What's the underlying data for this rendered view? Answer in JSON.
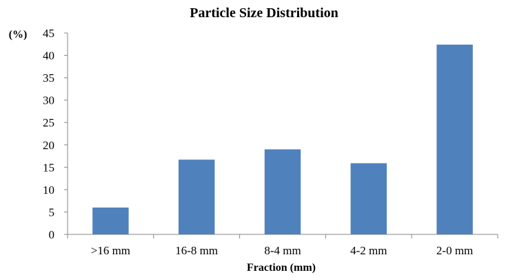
{
  "chart_data": {
    "type": "bar",
    "title": "Particle Size Distribution",
    "xlabel": "Fraction (mm)",
    "ylabel": "(%)",
    "categories": [
      ">16 mm",
      "16-8 mm",
      "8-4 mm",
      "4-2 mm",
      "2-0 mm"
    ],
    "values": [
      6.0,
      16.7,
      19.0,
      15.9,
      42.4
    ],
    "ylim": [
      0,
      45
    ],
    "yticks": [
      0,
      5,
      10,
      15,
      20,
      25,
      30,
      35,
      40,
      45
    ],
    "grid": false,
    "legend": "none",
    "bar_color": "#4F81BD",
    "axis_color": "#868686"
  }
}
